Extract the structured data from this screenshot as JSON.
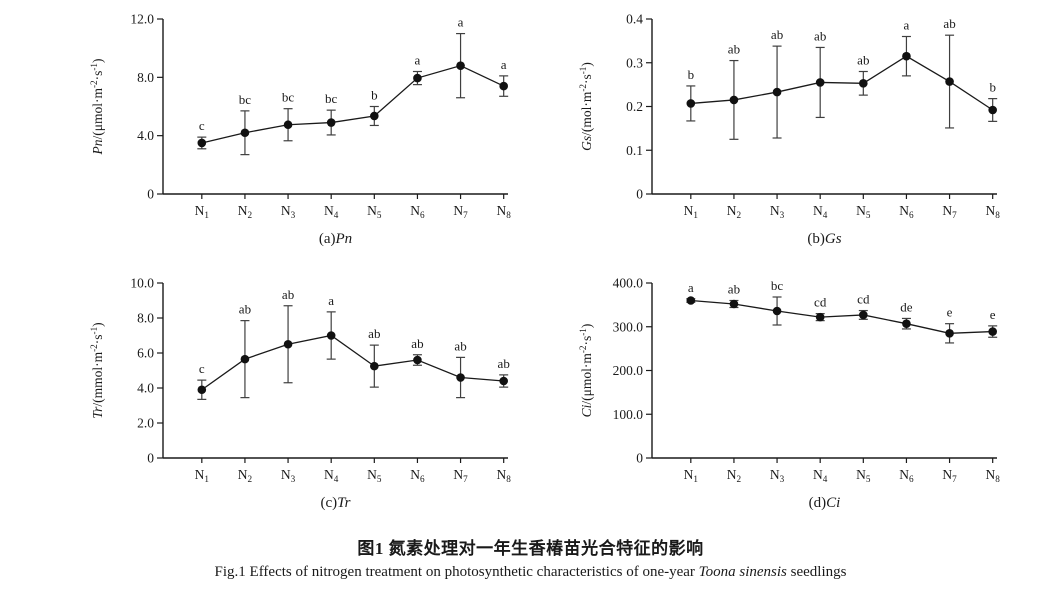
{
  "figure": {
    "title_zh": "图1  氮素处理对一年生香椿苗光合特征的影响",
    "caption_en_segments": [
      {
        "t": "Fig.1  Effects of nitrogen treatment on photosynthetic characteristics of one-year "
      },
      {
        "t": "Toona sinensis",
        "it": true
      },
      {
        "t": " seedlings"
      }
    ]
  },
  "style": {
    "line_color": "#1a1a1a",
    "marker_color": "#111111",
    "error_color": "#3f3f3f",
    "text_color": "#1a1a1a",
    "background": "#ffffff"
  },
  "chart_data": [
    {
      "type": "line",
      "panel_label": "(a)",
      "panel_var": "Pn",
      "ylabel_segments": [
        {
          "t": "Pn",
          "it": true
        },
        {
          "t": "/(μmol·m"
        },
        {
          "t": "-2",
          "sup": true
        },
        {
          "t": "·s"
        },
        {
          "t": "-1",
          "sup": true
        },
        {
          "t": ")"
        }
      ],
      "categories": [
        "N1",
        "N2",
        "N3",
        "N4",
        "N5",
        "N6",
        "N7",
        "N8"
      ],
      "values": [
        3.5,
        4.2,
        4.75,
        4.9,
        5.35,
        7.95,
        8.8,
        7.4
      ],
      "errors": [
        0.4,
        1.5,
        1.1,
        0.85,
        0.65,
        0.45,
        2.2,
        0.7
      ],
      "sig_letters": [
        "c",
        "bc",
        "bc",
        "bc",
        "b",
        "a",
        "a",
        "a"
      ],
      "ylim": [
        0,
        12
      ],
      "yticks": [
        0,
        4,
        8,
        12
      ],
      "ytick_labels": [
        "0",
        "4.0",
        "8.0",
        "12.0"
      ],
      "xlabel": "",
      "grid": false,
      "legend": "none"
    },
    {
      "type": "line",
      "panel_label": "(b)",
      "panel_var": "Gs",
      "ylabel_segments": [
        {
          "t": "Gs",
          "it": true
        },
        {
          "t": "/(mol·m"
        },
        {
          "t": "-2",
          "sup": true
        },
        {
          "t": "·s"
        },
        {
          "t": "-1",
          "sup": true
        },
        {
          "t": ")"
        }
      ],
      "categories": [
        "N1",
        "N2",
        "N3",
        "N4",
        "N5",
        "N6",
        "N7",
        "N8"
      ],
      "values": [
        0.207,
        0.215,
        0.233,
        0.255,
        0.253,
        0.315,
        0.257,
        0.192
      ],
      "errors": [
        0.04,
        0.09,
        0.105,
        0.08,
        0.027,
        0.045,
        0.106,
        0.026
      ],
      "sig_letters": [
        "b",
        "ab",
        "ab",
        "ab",
        "ab",
        "a",
        "ab",
        "b"
      ],
      "ylim": [
        0,
        0.4
      ],
      "yticks": [
        0,
        0.1,
        0.2,
        0.3,
        0.4
      ],
      "ytick_labels": [
        "0",
        "0.1",
        "0.2",
        "0.3",
        "0.4"
      ],
      "xlabel": "",
      "grid": false,
      "legend": "none"
    },
    {
      "type": "line",
      "panel_label": "(c)",
      "panel_var": "Tr",
      "ylabel_segments": [
        {
          "t": "Tr",
          "it": true
        },
        {
          "t": "/(mmol·m"
        },
        {
          "t": "-2",
          "sup": true
        },
        {
          "t": "·s"
        },
        {
          "t": "-1",
          "sup": true
        },
        {
          "t": ")"
        }
      ],
      "categories": [
        "N1",
        "N2",
        "N3",
        "N4",
        "N5",
        "N6",
        "N7",
        "N8"
      ],
      "values": [
        3.9,
        5.65,
        6.5,
        7.0,
        5.25,
        5.6,
        4.6,
        4.4
      ],
      "errors": [
        0.55,
        2.2,
        2.2,
        1.35,
        1.2,
        0.3,
        1.15,
        0.35
      ],
      "sig_letters": [
        "c",
        "ab",
        "ab",
        "a",
        "ab",
        "ab",
        "ab",
        "ab"
      ],
      "ylim": [
        0,
        10
      ],
      "yticks": [
        0,
        2,
        4,
        6,
        8,
        10
      ],
      "ytick_labels": [
        "0",
        "2.0",
        "4.0",
        "6.0",
        "8.0",
        "10.0"
      ],
      "xlabel": "",
      "grid": false,
      "legend": "none"
    },
    {
      "type": "line",
      "panel_label": "(d)",
      "panel_var": "Ci",
      "ylabel_segments": [
        {
          "t": "Ci",
          "it": true
        },
        {
          "t": "/(μmol·m"
        },
        {
          "t": "-2",
          "sup": true
        },
        {
          "t": "·s"
        },
        {
          "t": "-1",
          "sup": true
        },
        {
          "t": ")"
        }
      ],
      "categories": [
        "N1",
        "N2",
        "N3",
        "N4",
        "N5",
        "N6",
        "N7",
        "N8"
      ],
      "values": [
        360,
        352,
        336,
        322,
        327,
        307,
        285,
        289
      ],
      "errors": [
        4,
        8,
        32,
        8,
        10,
        12,
        22,
        13
      ],
      "sig_letters": [
        "a",
        "ab",
        "bc",
        "cd",
        "cd",
        "de",
        "e",
        "e"
      ],
      "ylim": [
        0,
        400
      ],
      "yticks": [
        0,
        100,
        200,
        300,
        400
      ],
      "ytick_labels": [
        "0",
        "100.0",
        "200.0",
        "300.0",
        "400.0"
      ],
      "xlabel": "",
      "grid": false,
      "legend": "none"
    }
  ]
}
